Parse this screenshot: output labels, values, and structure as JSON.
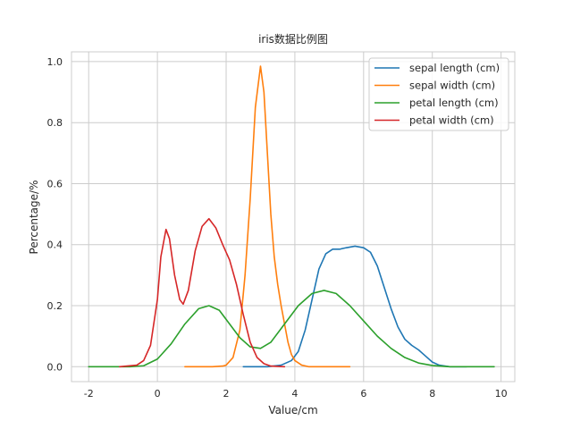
{
  "chart_data": {
    "type": "line",
    "title": "iris数据比例图",
    "xlabel": "Value/cm",
    "ylabel": "Percentage/%",
    "xlim": [
      -2.5,
      10.4
    ],
    "ylim": [
      -0.049,
      1.032
    ],
    "x_ticks": [
      -2,
      0,
      2,
      4,
      6,
      8,
      10
    ],
    "y_ticks": [
      0.0,
      0.2,
      0.4,
      0.6,
      0.8,
      1.0
    ],
    "grid": true,
    "legend_position": "top-right",
    "series": [
      {
        "name": "sepal length (cm)",
        "color": "#1f77b4",
        "points": [
          [
            2.5,
            0.0
          ],
          [
            3.2,
            0.0
          ],
          [
            3.6,
            0.005
          ],
          [
            3.9,
            0.02
          ],
          [
            4.1,
            0.05
          ],
          [
            4.3,
            0.12
          ],
          [
            4.5,
            0.22
          ],
          [
            4.7,
            0.32
          ],
          [
            4.9,
            0.37
          ],
          [
            5.1,
            0.385
          ],
          [
            5.3,
            0.385
          ],
          [
            5.5,
            0.39
          ],
          [
            5.75,
            0.395
          ],
          [
            6.0,
            0.39
          ],
          [
            6.2,
            0.375
          ],
          [
            6.4,
            0.33
          ],
          [
            6.6,
            0.26
          ],
          [
            6.8,
            0.19
          ],
          [
            7.0,
            0.13
          ],
          [
            7.2,
            0.09
          ],
          [
            7.4,
            0.07
          ],
          [
            7.6,
            0.055
          ],
          [
            7.8,
            0.035
          ],
          [
            8.0,
            0.015
          ],
          [
            8.2,
            0.005
          ],
          [
            8.5,
            0.0
          ],
          [
            9.0,
            0.0
          ]
        ]
      },
      {
        "name": "sepal width (cm)",
        "color": "#ff7f0e",
        "points": [
          [
            0.8,
            0.0
          ],
          [
            1.6,
            0.0
          ],
          [
            1.9,
            0.002
          ],
          [
            2.0,
            0.005
          ],
          [
            2.2,
            0.03
          ],
          [
            2.4,
            0.12
          ],
          [
            2.55,
            0.3
          ],
          [
            2.7,
            0.55
          ],
          [
            2.85,
            0.85
          ],
          [
            3.0,
            0.985
          ],
          [
            3.1,
            0.9
          ],
          [
            3.2,
            0.7
          ],
          [
            3.3,
            0.5
          ],
          [
            3.4,
            0.36
          ],
          [
            3.5,
            0.27
          ],
          [
            3.6,
            0.2
          ],
          [
            3.7,
            0.14
          ],
          [
            3.8,
            0.08
          ],
          [
            3.9,
            0.04
          ],
          [
            4.0,
            0.02
          ],
          [
            4.2,
            0.005
          ],
          [
            4.4,
            0.0
          ],
          [
            5.6,
            0.0
          ]
        ]
      },
      {
        "name": "petal length (cm)",
        "color": "#2ca02c",
        "points": [
          [
            -2.0,
            0.0
          ],
          [
            -0.8,
            0.0
          ],
          [
            -0.4,
            0.003
          ],
          [
            0.0,
            0.025
          ],
          [
            0.4,
            0.075
          ],
          [
            0.8,
            0.14
          ],
          [
            1.2,
            0.19
          ],
          [
            1.5,
            0.2
          ],
          [
            1.8,
            0.185
          ],
          [
            2.1,
            0.14
          ],
          [
            2.4,
            0.095
          ],
          [
            2.7,
            0.065
          ],
          [
            3.0,
            0.06
          ],
          [
            3.3,
            0.08
          ],
          [
            3.7,
            0.14
          ],
          [
            4.1,
            0.2
          ],
          [
            4.5,
            0.24
          ],
          [
            4.85,
            0.25
          ],
          [
            5.2,
            0.24
          ],
          [
            5.6,
            0.2
          ],
          [
            6.0,
            0.15
          ],
          [
            6.4,
            0.1
          ],
          [
            6.8,
            0.06
          ],
          [
            7.2,
            0.03
          ],
          [
            7.6,
            0.012
          ],
          [
            8.0,
            0.004
          ],
          [
            8.5,
            0.0
          ],
          [
            9.8,
            0.0
          ]
        ]
      },
      {
        "name": "petal width (cm)",
        "color": "#d62728",
        "points": [
          [
            -1.1,
            0.0
          ],
          [
            -0.6,
            0.005
          ],
          [
            -0.4,
            0.02
          ],
          [
            -0.2,
            0.07
          ],
          [
            0.0,
            0.22
          ],
          [
            0.1,
            0.36
          ],
          [
            0.25,
            0.45
          ],
          [
            0.35,
            0.42
          ],
          [
            0.5,
            0.3
          ],
          [
            0.65,
            0.22
          ],
          [
            0.75,
            0.205
          ],
          [
            0.9,
            0.25
          ],
          [
            1.1,
            0.38
          ],
          [
            1.3,
            0.46
          ],
          [
            1.5,
            0.485
          ],
          [
            1.7,
            0.455
          ],
          [
            1.9,
            0.4
          ],
          [
            2.1,
            0.35
          ],
          [
            2.3,
            0.27
          ],
          [
            2.5,
            0.17
          ],
          [
            2.7,
            0.08
          ],
          [
            2.9,
            0.03
          ],
          [
            3.1,
            0.01
          ],
          [
            3.3,
            0.002
          ],
          [
            3.7,
            0.0
          ]
        ]
      }
    ]
  }
}
